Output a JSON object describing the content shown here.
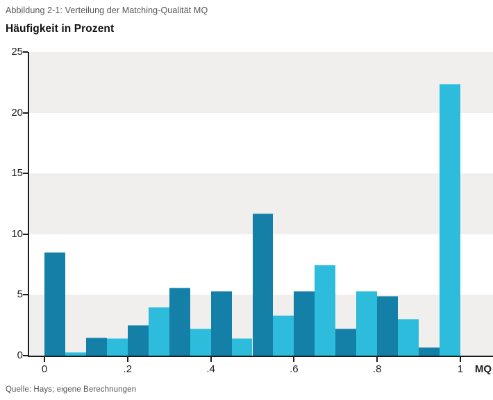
{
  "header": {
    "caption": "Abbildung 2-1: Verteilung der Matching-Qualität MQ",
    "axis_title": "Häufigkeit in Prozent"
  },
  "footer": {
    "source": "Quelle: Hays; eigene Berechnungen"
  },
  "chart_data": {
    "type": "bar",
    "title": "Abbildung 2-1: Verteilung der Matching-Qualität MQ",
    "subtitle": "Häufigkeit in Prozent",
    "xlabel": "MQ",
    "ylabel": "Häufigkeit in Prozent",
    "ylim": [
      0,
      25
    ],
    "xlim": [
      0,
      1.08
    ],
    "bin_width": 0.05,
    "bin_starts": [
      0,
      0.05,
      0.1,
      0.15,
      0.2,
      0.25,
      0.3,
      0.35,
      0.4,
      0.45,
      0.5,
      0.55,
      0.6,
      0.65,
      0.7,
      0.75,
      0.8,
      0.85,
      0.9,
      0.95
    ],
    "values": [
      8.5,
      0.3,
      1.5,
      1.4,
      2.5,
      4.0,
      5.6,
      2.2,
      5.3,
      1.4,
      11.7,
      3.3,
      5.3,
      7.5,
      2.2,
      5.3,
      4.9,
      3.0,
      0.7,
      22.4
    ],
    "bar_color_pattern": "alternating",
    "xticks": {
      "values": [
        0,
        0.2,
        0.4,
        0.6,
        0.8,
        1
      ],
      "labels": [
        "0",
        ".2",
        ".4",
        ".6",
        ".8",
        "1"
      ]
    },
    "yticks": {
      "values": [
        25,
        20,
        15,
        10,
        5,
        0
      ],
      "labels": [
        "25",
        "20",
        "15",
        "10",
        "5",
        "0"
      ]
    },
    "grid": "horizontal bands every 5 units, alternating gray/white",
    "legend": "none",
    "colors": {
      "bar_dark": "#1480a8",
      "bar_light": "#2dbcdc",
      "band_gray": "#f1efed",
      "band_white": "#ffffff",
      "axis": "#1d1d1b",
      "muted_text": "#55555a"
    }
  }
}
